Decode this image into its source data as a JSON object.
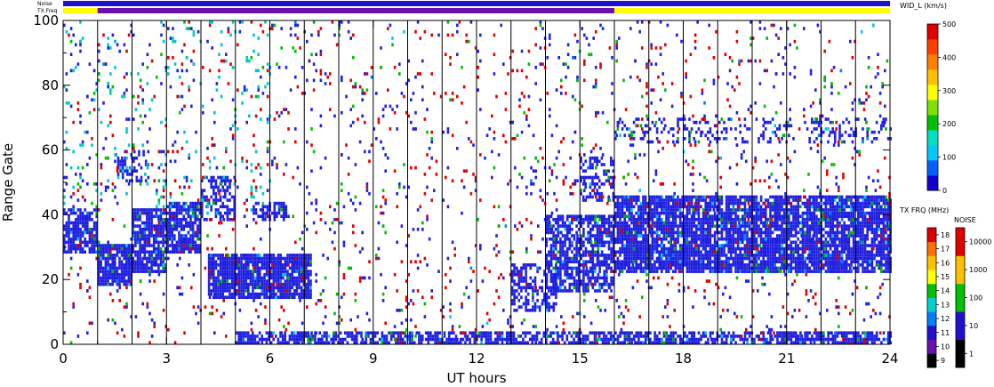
{
  "chart_data": {
    "type": "heatmap",
    "xlabel": "UT hours",
    "ylabel": "Range Gate",
    "xlim": [
      0,
      24
    ],
    "ylim": [
      0,
      100
    ],
    "x_ticks": [
      "0",
      "3",
      "6",
      "9",
      "12",
      "15",
      "18",
      "21",
      "24"
    ],
    "y_ticks": [
      "0",
      "20",
      "40",
      "60",
      "80",
      "100"
    ],
    "scan_lines_ut": [
      1,
      2,
      3,
      4,
      5,
      6,
      7,
      8,
      9,
      10,
      11,
      12,
      13,
      14,
      15,
      16,
      17,
      18,
      19,
      20,
      21,
      22,
      23
    ],
    "strips": {
      "noise_label": "Noise",
      "txfreq_label": "TX Freq",
      "noise_color": "#2010d0",
      "txfreq_segments": [
        {
          "from": 0,
          "to": 1,
          "color": "#ffff00"
        },
        {
          "from": 1,
          "to": 16,
          "color": "#6a10b0"
        },
        {
          "from": 16,
          "to": 24,
          "color": "#ffff00"
        }
      ]
    },
    "regions": [
      {
        "x": [
          0.0,
          1.0
        ],
        "y": [
          28,
          42
        ],
        "density": 0.75,
        "color": "#2020e0"
      },
      {
        "x": [
          1.0,
          2.0
        ],
        "y": [
          18,
          31
        ],
        "density": 0.9,
        "color": "#2020e0"
      },
      {
        "x": [
          2.0,
          3.0
        ],
        "y": [
          22,
          42
        ],
        "density": 0.8,
        "color": "#2020e0"
      },
      {
        "x": [
          3.0,
          4.0
        ],
        "y": [
          28,
          44
        ],
        "density": 0.8,
        "color": "#2020e0"
      },
      {
        "x": [
          4.0,
          5.0
        ],
        "y": [
          38,
          52
        ],
        "density": 0.5,
        "color": "#2020e0"
      },
      {
        "x": [
          4.2,
          7.2
        ],
        "y": [
          14,
          28
        ],
        "density": 0.9,
        "color": "#2020e0"
      },
      {
        "x": [
          5.5,
          6.5
        ],
        "y": [
          38,
          44
        ],
        "density": 0.6,
        "color": "#2020e0"
      },
      {
        "x": [
          1.5,
          2.5
        ],
        "y": [
          50,
          60
        ],
        "density": 0.4,
        "color": "#2020e0"
      },
      {
        "x": [
          13.0,
          14.3
        ],
        "y": [
          10,
          25
        ],
        "density": 0.5,
        "color": "#2020e0"
      },
      {
        "x": [
          14.0,
          16.0
        ],
        "y": [
          16,
          40
        ],
        "density": 0.7,
        "color": "#2020e0"
      },
      {
        "x": [
          15.0,
          16.0
        ],
        "y": [
          44,
          58
        ],
        "density": 0.4,
        "color": "#2020e0"
      },
      {
        "x": [
          16.0,
          24.0
        ],
        "y": [
          22,
          46
        ],
        "density": 0.85,
        "color": "#2020e0"
      },
      {
        "x": [
          16.0,
          24.0
        ],
        "y": [
          62,
          70
        ],
        "density": 0.25,
        "color": "#2020e0"
      },
      {
        "x": [
          5.0,
          24.0
        ],
        "y": [
          0,
          4
        ],
        "density": 0.7,
        "color": "#2020e0"
      },
      {
        "x": [
          0.0,
          24.0
        ],
        "y": [
          0,
          100
        ],
        "density": 0.02,
        "color": "#e00000"
      },
      {
        "x": [
          0.0,
          24.0
        ],
        "y": [
          0,
          100
        ],
        "density": 0.025,
        "color": "#2020e0"
      },
      {
        "x": [
          0.0,
          6.0
        ],
        "y": [
          40,
          100
        ],
        "density": 0.03,
        "color": "#00c8c8"
      },
      {
        "x": [
          0.0,
          24.0
        ],
        "y": [
          0,
          100
        ],
        "density": 0.006,
        "color": "#00c000"
      }
    ],
    "colorbars": [
      {
        "title": "WID_L (km/s)",
        "ticks": [
          "0",
          "100",
          "200",
          "300",
          "400",
          "500"
        ],
        "colors": [
          "#1000d0",
          "#0060ff",
          "#00c8ff",
          "#00e0c0",
          "#00c000",
          "#80e000",
          "#ffff00",
          "#ffc000",
          "#ff8000",
          "#ff4000",
          "#e00000"
        ]
      },
      {
        "title": "TX FRQ (MHz)",
        "ticks": [
          "9",
          "10",
          "11",
          "12",
          "13",
          "14",
          "15",
          "16",
          "17",
          "18"
        ],
        "colors": [
          "#000000",
          "#6a10b0",
          "#2010d0",
          "#0080ff",
          "#00d0d0",
          "#00c000",
          "#ffff00",
          "#ffc000",
          "#ff7000",
          "#e00000"
        ]
      },
      {
        "title": "NOISE",
        "ticks": [
          "1",
          "10",
          "100",
          "1000",
          "10000"
        ],
        "colors": [
          "#000000",
          "#2010d0",
          "#00c000",
          "#ffc000",
          "#e00000"
        ]
      }
    ]
  }
}
